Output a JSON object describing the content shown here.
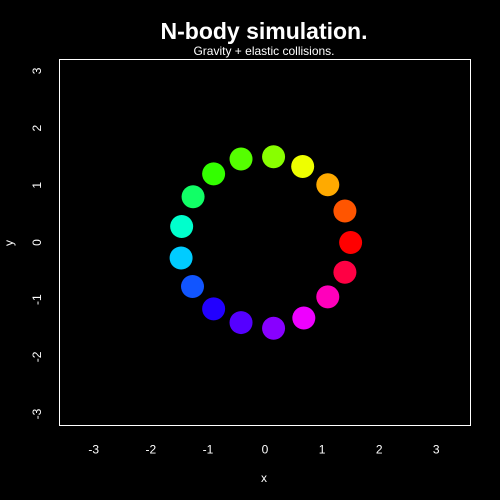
{
  "chart_data": {
    "type": "scatter",
    "title": "N-body simulation.",
    "subtitle": "Gravity + elastic collisions.",
    "xlabel": "x",
    "ylabel": "y",
    "xlim": [
      -3.6,
      3.6
    ],
    "ylim": [
      -3.2,
      3.2
    ],
    "x_ticks": [
      -3,
      -2,
      -1,
      0,
      1,
      2,
      3
    ],
    "y_ticks": [
      -3,
      -2,
      -1,
      0,
      1,
      2,
      3
    ],
    "grid": false,
    "background": "#000000",
    "frame_color": "#ffffff",
    "points": [
      {
        "x": 1.5,
        "y": 0.0,
        "color": "#ff0000"
      },
      {
        "x": 1.4,
        "y": -0.52,
        "color": "#ff0044"
      },
      {
        "x": 1.1,
        "y": -0.95,
        "color": "#ff00bb"
      },
      {
        "x": 0.68,
        "y": -1.32,
        "color": "#ee00ff"
      },
      {
        "x": 0.15,
        "y": -1.5,
        "color": "#8800ff"
      },
      {
        "x": -0.42,
        "y": -1.4,
        "color": "#5500ff"
      },
      {
        "x": -0.9,
        "y": -1.16,
        "color": "#2200ff"
      },
      {
        "x": -1.27,
        "y": -0.77,
        "color": "#1155ff"
      },
      {
        "x": -1.47,
        "y": -0.27,
        "color": "#00ccff"
      },
      {
        "x": -1.46,
        "y": 0.28,
        "color": "#00ffcc"
      },
      {
        "x": -1.26,
        "y": 0.8,
        "color": "#11ff66"
      },
      {
        "x": -0.9,
        "y": 1.2,
        "color": "#33ff00"
      },
      {
        "x": -0.42,
        "y": 1.46,
        "color": "#55ff00"
      },
      {
        "x": 0.15,
        "y": 1.5,
        "color": "#88ff00"
      },
      {
        "x": 0.66,
        "y": 1.33,
        "color": "#eeff00"
      },
      {
        "x": 1.1,
        "y": 1.01,
        "color": "#ffaa00"
      },
      {
        "x": 1.4,
        "y": 0.55,
        "color": "#ff5500"
      }
    ]
  }
}
